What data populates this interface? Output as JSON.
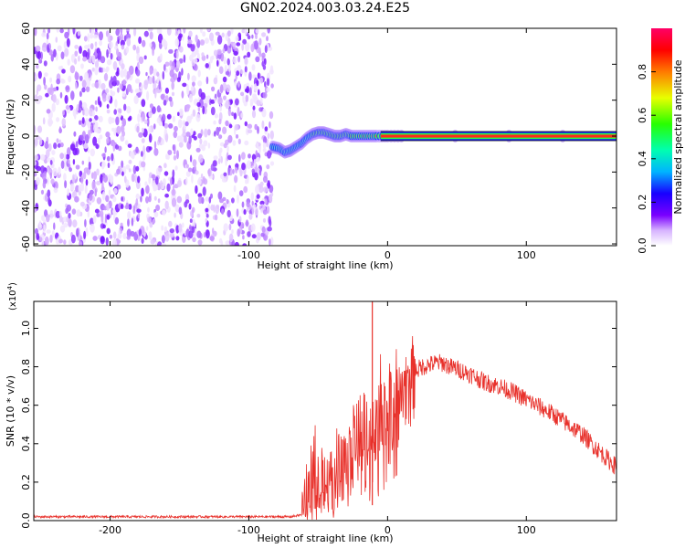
{
  "title": "GN02.2024.003.03.24.E25",
  "chart_data": [
    {
      "type": "heatmap",
      "xlabel": "Height of straight line (km)",
      "ylabel": "Frequency (Hz)",
      "xlim": [
        -255,
        165
      ],
      "ylim": [
        -61,
        60
      ],
      "x_ticks": [
        -200,
        -100,
        0,
        100
      ],
      "y_ticks": [
        -60,
        -40,
        -20,
        0,
        20,
        40,
        60
      ],
      "noise_region_x": [
        -255,
        -83
      ],
      "ridge_track": [
        {
          "x": -83,
          "y": -6
        },
        {
          "x": -78,
          "y": -7
        },
        {
          "x": -74,
          "y": -9
        },
        {
          "x": -70,
          "y": -8
        },
        {
          "x": -66,
          "y": -6
        },
        {
          "x": -62,
          "y": -4
        },
        {
          "x": -58,
          "y": -1
        },
        {
          "x": -54,
          "y": 1
        },
        {
          "x": -50,
          "y": 2
        },
        {
          "x": -46,
          "y": 2
        },
        {
          "x": -42,
          "y": 1
        },
        {
          "x": -38,
          "y": 0
        },
        {
          "x": -34,
          "y": 0
        },
        {
          "x": -30,
          "y": 1
        },
        {
          "x": -26,
          "y": 0
        },
        {
          "x": -20,
          "y": 0
        },
        {
          "x": -14,
          "y": 0
        },
        {
          "x": -8,
          "y": 0
        },
        {
          "x": 0,
          "y": 0
        },
        {
          "x": 10,
          "y": 0
        },
        {
          "x": 165,
          "y": 0
        }
      ],
      "colorbar": {
        "label": "Normalized spectral amplitude",
        "range": [
          0,
          1
        ],
        "ticks": [
          "0.0",
          "0.2",
          "0.4",
          "0.6",
          "0.8"
        ]
      },
      "grid": false
    },
    {
      "type": "line",
      "xlabel": "Height of straight line (km)",
      "ylabel": "SNR (10 * v/v)",
      "y_multiplier_label": "(x10",
      "y_multiplier_exp": "4",
      "y_multiplier_close": ")",
      "xlim": [
        -255,
        165
      ],
      "ylim": [
        0,
        1.14
      ],
      "x_ticks": [
        -200,
        -100,
        0,
        100
      ],
      "y_ticks": [
        "0.0",
        "0.2",
        "0.4",
        "0.6",
        "0.8",
        "1.0"
      ],
      "series": [
        {
          "color": "#e8312b",
          "x": [
            -255,
            -200,
            -150,
            -100,
            -70,
            -62,
            -60,
            -55,
            -50,
            -45,
            -40,
            -35,
            -30,
            -25,
            -20,
            -15,
            -12,
            -10,
            -5,
            0,
            5,
            10,
            15,
            20,
            25,
            30,
            35,
            40,
            45,
            50,
            60,
            70,
            80,
            90,
            100,
            110,
            120,
            130,
            140,
            150,
            160,
            165
          ],
          "y": [
            0.02,
            0.02,
            0.02,
            0.02,
            0.02,
            0.03,
            0.1,
            0.2,
            0.25,
            0.22,
            0.18,
            0.3,
            0.32,
            0.4,
            0.45,
            0.5,
            0.5,
            0.42,
            0.6,
            0.63,
            0.62,
            0.68,
            0.74,
            0.78,
            0.8,
            0.81,
            0.82,
            0.82,
            0.8,
            0.79,
            0.76,
            0.72,
            0.7,
            0.67,
            0.63,
            0.59,
            0.55,
            0.5,
            0.45,
            0.38,
            0.31,
            0.28
          ]
        }
      ],
      "spikes": [
        {
          "x": -11,
          "y": 1.14
        },
        {
          "x": -11,
          "y": 0.08
        }
      ],
      "grid": false
    }
  ]
}
